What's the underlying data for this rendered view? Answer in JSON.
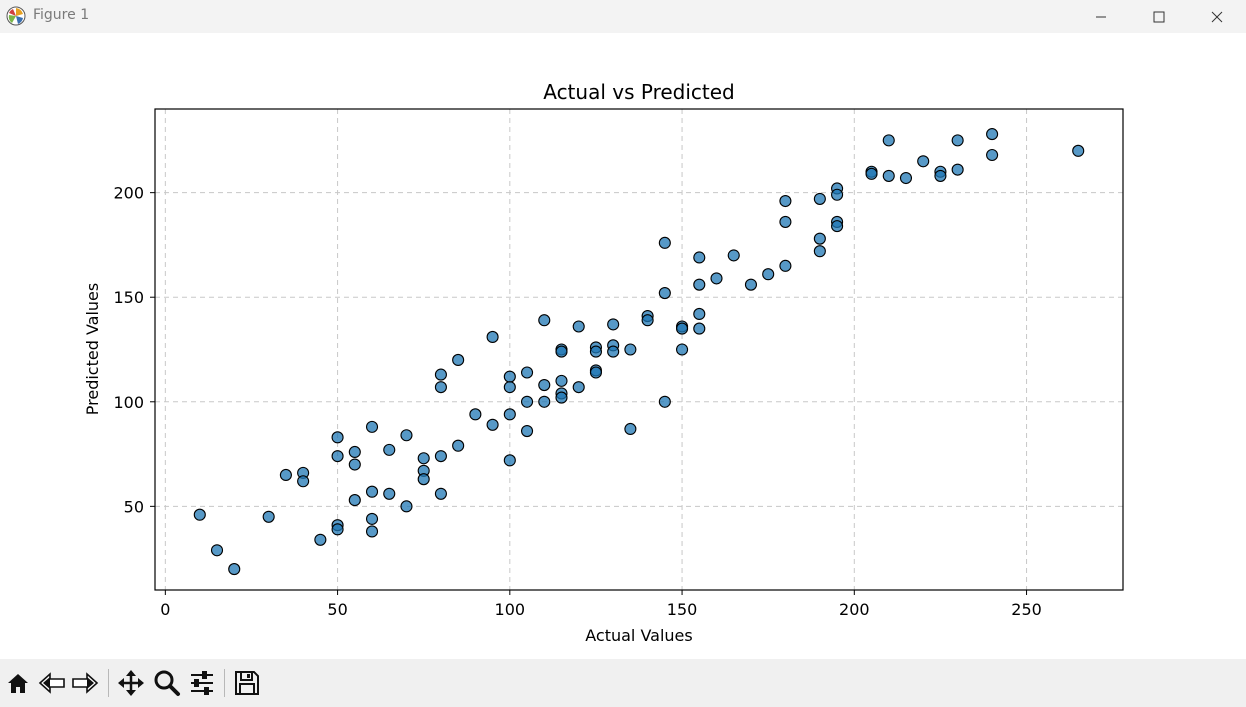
{
  "window": {
    "title": "Figure 1"
  },
  "toolbar": {
    "buttons": [
      "home-icon",
      "back-icon",
      "forward-icon",
      "pan-icon",
      "zoom-icon",
      "configure-subplots-icon",
      "save-icon"
    ],
    "coords": ""
  },
  "chart_data": {
    "type": "scatter",
    "title": "Actual vs Predicted",
    "xlabel": "Actual Values",
    "ylabel": "Predicted Values",
    "xlim": [
      -3,
      278
    ],
    "ylim": [
      10,
      240
    ],
    "xticks": [
      0,
      50,
      100,
      150,
      200,
      250
    ],
    "yticks": [
      50,
      100,
      150,
      200
    ],
    "grid": true,
    "grid_style": "dashed",
    "marker_color": "#1f77b4",
    "marker_edge_color": "#000000",
    "marker_alpha": 0.75,
    "points": [
      [
        10,
        46
      ],
      [
        15,
        29
      ],
      [
        20,
        20
      ],
      [
        30,
        45
      ],
      [
        35,
        65
      ],
      [
        40,
        66
      ],
      [
        40,
        62
      ],
      [
        45,
        34
      ],
      [
        50,
        83
      ],
      [
        50,
        74
      ],
      [
        50,
        41
      ],
      [
        50,
        39
      ],
      [
        55,
        76
      ],
      [
        55,
        70
      ],
      [
        55,
        53
      ],
      [
        60,
        88
      ],
      [
        60,
        57
      ],
      [
        60,
        44
      ],
      [
        60,
        38
      ],
      [
        65,
        77
      ],
      [
        65,
        56
      ],
      [
        70,
        84
      ],
      [
        70,
        50
      ],
      [
        75,
        73
      ],
      [
        75,
        67
      ],
      [
        75,
        63
      ],
      [
        80,
        113
      ],
      [
        80,
        107
      ],
      [
        80,
        74
      ],
      [
        80,
        56
      ],
      [
        85,
        120
      ],
      [
        85,
        79
      ],
      [
        90,
        94
      ],
      [
        95,
        131
      ],
      [
        95,
        89
      ],
      [
        100,
        112
      ],
      [
        100,
        107
      ],
      [
        100,
        94
      ],
      [
        100,
        72
      ],
      [
        105,
        114
      ],
      [
        105,
        100
      ],
      [
        105,
        86
      ],
      [
        110,
        139
      ],
      [
        110,
        108
      ],
      [
        110,
        100
      ],
      [
        115,
        125
      ],
      [
        115,
        124
      ],
      [
        115,
        110
      ],
      [
        115,
        104
      ],
      [
        115,
        102
      ],
      [
        120,
        136
      ],
      [
        120,
        107
      ],
      [
        125,
        126
      ],
      [
        125,
        124
      ],
      [
        125,
        115
      ],
      [
        125,
        114
      ],
      [
        130,
        137
      ],
      [
        130,
        127
      ],
      [
        130,
        124
      ],
      [
        135,
        125
      ],
      [
        135,
        87
      ],
      [
        140,
        141
      ],
      [
        140,
        139
      ],
      [
        145,
        176
      ],
      [
        145,
        152
      ],
      [
        145,
        100
      ],
      [
        150,
        136
      ],
      [
        150,
        135
      ],
      [
        150,
        125
      ],
      [
        155,
        169
      ],
      [
        155,
        156
      ],
      [
        155,
        142
      ],
      [
        155,
        135
      ],
      [
        160,
        159
      ],
      [
        165,
        170
      ],
      [
        170,
        156
      ],
      [
        175,
        161
      ],
      [
        180,
        196
      ],
      [
        180,
        186
      ],
      [
        180,
        165
      ],
      [
        190,
        197
      ],
      [
        190,
        178
      ],
      [
        190,
        172
      ],
      [
        195,
        202
      ],
      [
        195,
        199
      ],
      [
        195,
        186
      ],
      [
        195,
        184
      ],
      [
        205,
        210
      ],
      [
        205,
        209
      ],
      [
        210,
        225
      ],
      [
        210,
        208
      ],
      [
        215,
        207
      ],
      [
        220,
        215
      ],
      [
        225,
        210
      ],
      [
        225,
        208
      ],
      [
        230,
        225
      ],
      [
        230,
        211
      ],
      [
        240,
        228
      ],
      [
        240,
        218
      ],
      [
        265,
        220
      ]
    ]
  }
}
